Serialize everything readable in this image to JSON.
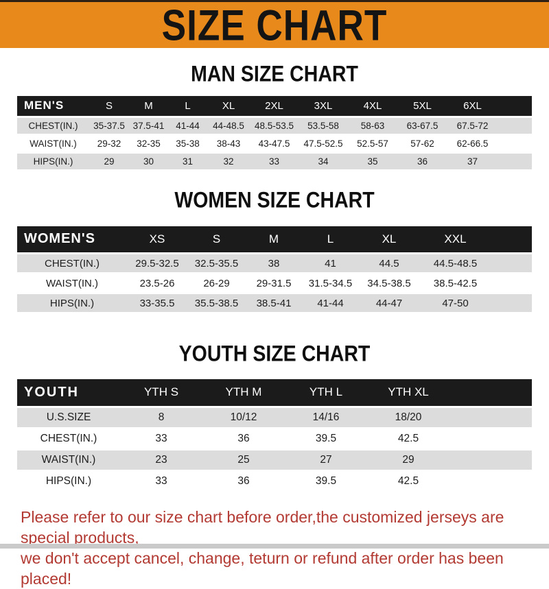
{
  "banner": {
    "title": "SIZE CHART"
  },
  "sections": [
    {
      "title": "MAN SIZE CHART",
      "header_label": "MEN'S",
      "columns": [
        "S",
        "M",
        "L",
        "XL",
        "2XL",
        "3XL",
        "4XL",
        "5XL",
        "6XL"
      ],
      "rows": [
        {
          "label": "CHEST(IN.)",
          "values": [
            "35-37.5",
            "37.5-41",
            "41-44",
            "44-48.5",
            "48.5-53.5",
            "53.5-58",
            "58-63",
            "63-67.5",
            "67.5-72"
          ]
        },
        {
          "label": "WAIST(IN.)",
          "values": [
            "29-32",
            "32-35",
            "35-38",
            "38-43",
            "43-47.5",
            "47.5-52.5",
            "52.5-57",
            "57-62",
            "62-66.5"
          ]
        },
        {
          "label": "HIPS(IN.)",
          "values": [
            "29",
            "30",
            "31",
            "32",
            "33",
            "34",
            "35",
            "36",
            "37"
          ]
        }
      ]
    },
    {
      "title": "WOMEN SIZE CHART",
      "header_label": "WOMEN'S",
      "columns": [
        "XS",
        "S",
        "M",
        "L",
        "XL",
        "XXL"
      ],
      "rows": [
        {
          "label": "CHEST(IN.)",
          "values": [
            "29.5-32.5",
            "32.5-35.5",
            "38",
            "41",
            "44.5",
            "44.5-48.5"
          ]
        },
        {
          "label": "WAIST(IN.)",
          "values": [
            "23.5-26",
            "26-29",
            "29-31.5",
            "31.5-34.5",
            "34.5-38.5",
            "38.5-42.5"
          ]
        },
        {
          "label": "HIPS(IN.)",
          "values": [
            "33-35.5",
            "35.5-38.5",
            "38.5-41",
            "41-44",
            "44-47",
            "47-50"
          ]
        }
      ]
    },
    {
      "title": "YOUTH SIZE CHART",
      "header_label": "YOUTH",
      "columns": [
        "YTH S",
        "YTH M",
        "YTH L",
        "YTH XL"
      ],
      "rows": [
        {
          "label": "U.S.SIZE",
          "values": [
            "8",
            "10/12",
            "14/16",
            "18/20"
          ]
        },
        {
          "label": "CHEST(IN.)",
          "values": [
            "33",
            "36",
            "39.5",
            "42.5"
          ]
        },
        {
          "label": "WAIST(IN.)",
          "values": [
            "23",
            "25",
            "27",
            "29"
          ]
        },
        {
          "label": "HIPS(IN.)",
          "values": [
            "33",
            "36",
            "39.5",
            "42.5"
          ]
        }
      ]
    }
  ],
  "footer": {
    "line1": "Please refer to our size chart before order,the customized jerseys are special products,",
    "line2": "we don't accept cancel, change, teturn or refund after order has been placed!"
  },
  "colors": {
    "banner_bg": "#E8891C",
    "header_bar": "#1B1B1B",
    "row_alt": "#DCDCDC",
    "footer_text": "#B23A33"
  }
}
